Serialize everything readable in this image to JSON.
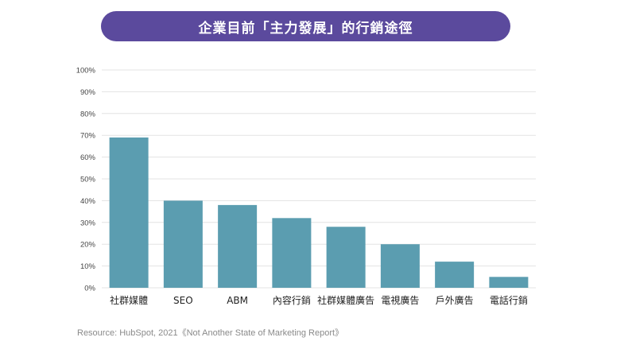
{
  "chart_data": {
    "type": "bar",
    "title": "企業目前「主力發展」的行銷途徑",
    "categories": [
      "社群媒體",
      "SEO",
      "ABM",
      "內容行銷",
      "社群媒體廣告",
      "電視廣告",
      "戶外廣告",
      "電話行銷"
    ],
    "values": [
      69,
      40,
      38,
      32,
      28,
      20,
      12,
      5
    ],
    "ylim": [
      0,
      100
    ],
    "yticks": [
      "0%",
      "10%",
      "20%",
      "30%",
      "40%",
      "50%",
      "60%",
      "70%",
      "80%",
      "90%",
      "100%"
    ],
    "xlabel": "",
    "ylabel": "",
    "grid": true,
    "legend": "none",
    "bar_color": "#5b9db0",
    "source": "Resource: HubSpot, 2021《Not Another State of Marketing Report》"
  },
  "colors": {
    "title_bg": "#5b4a9d",
    "grid": "#e3e3e3",
    "tick_text": "#444444"
  }
}
